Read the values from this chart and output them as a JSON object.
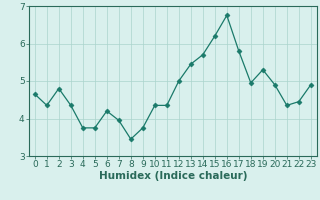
{
  "x": [
    0,
    1,
    2,
    3,
    4,
    5,
    6,
    7,
    8,
    9,
    10,
    11,
    12,
    13,
    14,
    15,
    16,
    17,
    18,
    19,
    20,
    21,
    22,
    23
  ],
  "y": [
    4.65,
    4.35,
    4.8,
    4.35,
    3.75,
    3.75,
    4.2,
    3.95,
    3.45,
    3.75,
    4.35,
    4.35,
    5.0,
    5.45,
    5.7,
    6.2,
    6.75,
    5.8,
    4.95,
    5.3,
    4.9,
    4.35,
    4.45,
    4.9
  ],
  "line_color": "#1a7a6a",
  "marker": "D",
  "marker_size": 2.5,
  "bg_color": "#d9f0ed",
  "grid_color": "#aad4cc",
  "axis_color": "#2a6a5a",
  "xlabel": "Humidex (Indice chaleur)",
  "ylim": [
    3.0,
    7.0
  ],
  "xlim": [
    -0.5,
    23.5
  ],
  "yticks": [
    3,
    4,
    5,
    6,
    7
  ],
  "xticks": [
    0,
    1,
    2,
    3,
    4,
    5,
    6,
    7,
    8,
    9,
    10,
    11,
    12,
    13,
    14,
    15,
    16,
    17,
    18,
    19,
    20,
    21,
    22,
    23
  ],
  "xlabel_fontsize": 7.5,
  "tick_fontsize": 6.5
}
